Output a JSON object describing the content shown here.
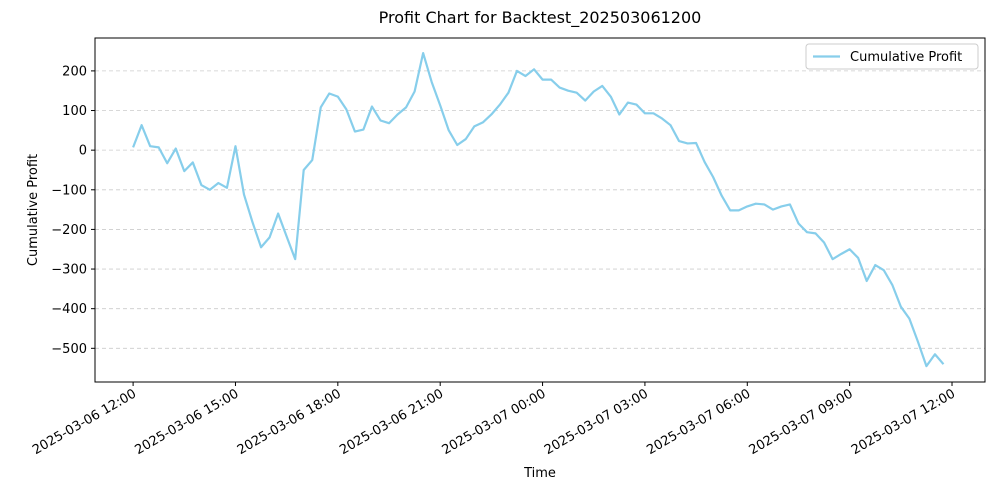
{
  "chart_data": {
    "type": "line",
    "title": "Profit Chart for Backtest_202503061200",
    "x_label": "Time",
    "y_label": "Cumulative Profit",
    "grid": true,
    "legend": "upper right",
    "x": [
      "2025-03-06 12:00",
      "2025-03-06 12:15",
      "2025-03-06 12:30",
      "2025-03-06 12:45",
      "2025-03-06 13:00",
      "2025-03-06 13:15",
      "2025-03-06 13:30",
      "2025-03-06 13:45",
      "2025-03-06 14:00",
      "2025-03-06 14:15",
      "2025-03-06 14:30",
      "2025-03-06 14:45",
      "2025-03-06 15:00",
      "2025-03-06 15:15",
      "2025-03-06 15:30",
      "2025-03-06 15:45",
      "2025-03-06 16:00",
      "2025-03-06 16:15",
      "2025-03-06 16:30",
      "2025-03-06 16:45",
      "2025-03-06 17:00",
      "2025-03-06 17:15",
      "2025-03-06 17:30",
      "2025-03-06 17:45",
      "2025-03-06 18:00",
      "2025-03-06 18:15",
      "2025-03-06 18:30",
      "2025-03-06 18:45",
      "2025-03-06 19:00",
      "2025-03-06 19:15",
      "2025-03-06 19:30",
      "2025-03-06 19:45",
      "2025-03-06 20:00",
      "2025-03-06 20:15",
      "2025-03-06 20:30",
      "2025-03-06 20:45",
      "2025-03-06 21:00",
      "2025-03-06 21:15",
      "2025-03-06 21:30",
      "2025-03-06 21:45",
      "2025-03-06 22:00",
      "2025-03-06 22:15",
      "2025-03-06 22:30",
      "2025-03-06 22:45",
      "2025-03-06 23:00",
      "2025-03-06 23:15",
      "2025-03-06 23:30",
      "2025-03-06 23:45",
      "2025-03-07 00:00",
      "2025-03-07 00:15",
      "2025-03-07 00:30",
      "2025-03-07 00:45",
      "2025-03-07 01:00",
      "2025-03-07 01:15",
      "2025-03-07 01:30",
      "2025-03-07 01:45",
      "2025-03-07 02:00",
      "2025-03-07 02:15",
      "2025-03-07 02:30",
      "2025-03-07 02:45",
      "2025-03-07 03:00",
      "2025-03-07 03:15",
      "2025-03-07 03:30",
      "2025-03-07 03:45",
      "2025-03-07 04:00",
      "2025-03-07 04:15",
      "2025-03-07 04:30",
      "2025-03-07 04:45",
      "2025-03-07 05:00",
      "2025-03-07 05:15",
      "2025-03-07 05:30",
      "2025-03-07 05:45",
      "2025-03-07 06:00",
      "2025-03-07 06:15",
      "2025-03-07 06:30",
      "2025-03-07 06:45",
      "2025-03-07 07:00",
      "2025-03-07 07:15",
      "2025-03-07 07:30",
      "2025-03-07 07:45",
      "2025-03-07 08:00",
      "2025-03-07 08:15",
      "2025-03-07 08:30",
      "2025-03-07 08:45",
      "2025-03-07 09:00",
      "2025-03-07 09:15",
      "2025-03-07 09:30",
      "2025-03-07 09:45",
      "2025-03-07 10:00",
      "2025-03-07 10:15",
      "2025-03-07 10:30",
      "2025-03-07 10:45",
      "2025-03-07 11:00",
      "2025-03-07 11:15",
      "2025-03-07 11:30",
      "2025-03-07 11:45"
    ],
    "series": [
      {
        "name": "Cumulative Profit",
        "color": "#87ceeb",
        "values": [
          7,
          63,
          10,
          7,
          -33,
          4,
          -53,
          -31,
          -88,
          -100,
          -83,
          -95,
          10,
          -112,
          -182,
          -245,
          -220,
          -160,
          -218,
          -275,
          -50,
          -25,
          108,
          143,
          135,
          103,
          47,
          52,
          110,
          75,
          68,
          90,
          108,
          148,
          245,
          172,
          113,
          50,
          13,
          28,
          60,
          70,
          90,
          115,
          145,
          200,
          187,
          204,
          178,
          178,
          158,
          150,
          145,
          125,
          148,
          162,
          135,
          90,
          120,
          115,
          93,
          93,
          80,
          63,
          23,
          17,
          18,
          -30,
          -68,
          -115,
          -152,
          -152,
          -142,
          -135,
          -137,
          -150,
          -142,
          -137,
          -185,
          -207,
          -210,
          -233,
          -275,
          -262,
          -250,
          -272,
          -330,
          -290,
          -303,
          -340,
          -395,
          -425,
          -483,
          -545,
          -515,
          -540
        ]
      }
    ],
    "xlim": [
      "2025-03-06 10:53",
      "2025-03-07 12:58"
    ],
    "xticks": [
      "2025-03-06 12:00",
      "2025-03-06 15:00",
      "2025-03-06 18:00",
      "2025-03-06 21:00",
      "2025-03-07 00:00",
      "2025-03-07 03:00",
      "2025-03-07 06:00",
      "2025-03-07 09:00",
      "2025-03-07 12:00"
    ],
    "ylim": [
      -585,
      283
    ],
    "yticks": [
      {
        "value": -500,
        "label": "−500"
      },
      {
        "value": -400,
        "label": "−400"
      },
      {
        "value": -300,
        "label": "−300"
      },
      {
        "value": -200,
        "label": "−200"
      },
      {
        "value": -100,
        "label": "−100"
      },
      0,
      100,
      200
    ]
  }
}
